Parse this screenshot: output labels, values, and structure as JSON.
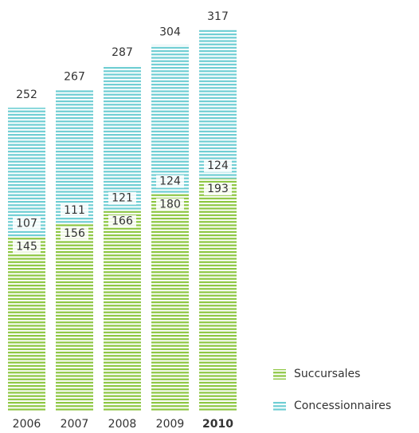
{
  "chart_data": {
    "type": "stacked-bar",
    "categories": [
      "2006",
      "2007",
      "2008",
      "2009",
      "2010"
    ],
    "series": [
      {
        "name": "Succursales",
        "color": "#8cc63f",
        "values": [
          145,
          156,
          166,
          180,
          193
        ]
      },
      {
        "name": "Concessionnaires",
        "color": "#6dcdd3",
        "values": [
          107,
          111,
          121,
          124,
          124
        ]
      }
    ],
    "totals": [
      252,
      267,
      287,
      304,
      317
    ],
    "highlight_index": 4
  }
}
